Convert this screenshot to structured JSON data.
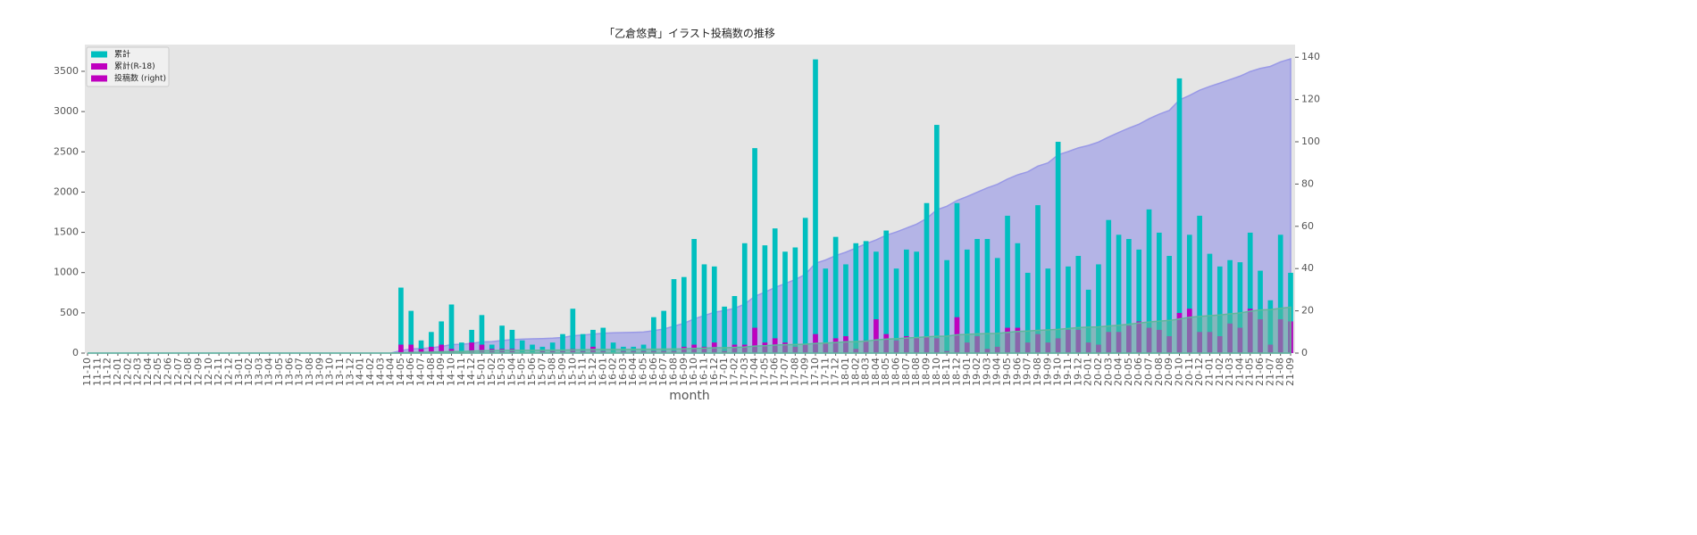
{
  "chart_data": {
    "type": "bar_area",
    "title": "「乙倉悠貴」イラスト投稿数の推移",
    "xlabel": "month",
    "categories": [
      "11-10",
      "11-11",
      "11-12",
      "12-01",
      "12-02",
      "12-03",
      "12-04",
      "12-05",
      "12-06",
      "12-07",
      "12-08",
      "12-09",
      "12-10",
      "12-11",
      "12-12",
      "13-01",
      "13-02",
      "13-03",
      "13-04",
      "13-05",
      "13-06",
      "13-07",
      "13-08",
      "13-09",
      "13-10",
      "13-11",
      "13-12",
      "14-01",
      "14-02",
      "14-03",
      "14-04",
      "14-05",
      "14-06",
      "14-07",
      "14-08",
      "14-09",
      "14-10",
      "14-11",
      "14-12",
      "15-01",
      "15-02",
      "15-03",
      "15-04",
      "15-05",
      "15-06",
      "15-07",
      "15-08",
      "15-09",
      "15-10",
      "15-11",
      "15-12",
      "16-01",
      "16-02",
      "16-03",
      "16-04",
      "16-05",
      "16-06",
      "16-07",
      "16-08",
      "16-09",
      "16-10",
      "16-11",
      "16-12",
      "17-01",
      "17-02",
      "17-03",
      "17-04",
      "17-05",
      "17-06",
      "17-07",
      "17-08",
      "17-09",
      "17-10",
      "17-11",
      "17-12",
      "18-01",
      "18-02",
      "18-03",
      "18-04",
      "18-05",
      "18-06",
      "18-07",
      "18-08",
      "18-09",
      "18-10",
      "18-11",
      "18-12",
      "19-01",
      "19-02",
      "19-03",
      "19-04",
      "19-05",
      "19-06",
      "19-07",
      "19-08",
      "19-09",
      "19-10",
      "19-11",
      "19-12",
      "20-01",
      "20-02",
      "20-03",
      "20-04",
      "20-05",
      "20-06",
      "20-07",
      "20-08",
      "20-09",
      "20-10",
      "20-11",
      "20-12",
      "21-01",
      "21-02",
      "21-03",
      "21-04",
      "21-05",
      "21-06",
      "21-07",
      "21-08",
      "21-09"
    ],
    "legend": [
      {
        "label": "累計",
        "color": "#00bfbf"
      },
      {
        "label": "累計(R-18)",
        "color": "#bf00bf"
      },
      {
        "label": "投稿数 (right)",
        "color": "#bf00bf"
      }
    ],
    "series": [
      {
        "kind": "area",
        "axis": "y",
        "color": "#9999e6",
        "values": [
          0,
          0,
          0,
          0,
          0,
          0,
          0,
          0,
          0,
          0,
          0,
          0,
          0,
          0,
          0,
          0,
          0,
          0,
          0,
          0,
          0,
          0,
          0,
          0,
          0,
          0,
          0,
          0,
          0,
          0,
          0,
          31,
          51,
          57,
          67,
          82,
          105,
          110,
          121,
          139,
          143,
          156,
          167,
          173,
          177,
          180,
          185,
          194,
          215,
          224,
          235,
          247,
          252,
          255,
          258,
          262,
          279,
          299,
          334,
          370,
          424,
          466,
          507,
          529,
          556,
          608,
          705,
          756,
          815,
          863,
          913,
          977,
          1116,
          1156,
          1211,
          1253,
          1305,
          1358,
          1406,
          1464,
          1504,
          1553,
          1601,
          1672,
          1780,
          1824,
          1895,
          1944,
          1998,
          2052,
          2097,
          2162,
          2214,
          2252,
          2322,
          2362,
          2462,
          2503,
          2549,
          2579,
          2621,
          2684,
          2740,
          2794,
          2843,
          2911,
          2968,
          3014,
          3144,
          3200,
          3265,
          3312,
          3353,
          3397,
          3440,
          3497,
          3536,
          3561,
          3617,
          3655
        ]
      },
      {
        "kind": "bar",
        "axis": "y2",
        "color": "#00bfbf",
        "values": [
          0,
          0,
          0,
          0,
          0,
          0,
          0,
          0,
          0,
          0,
          0,
          0,
          0,
          0,
          0,
          0,
          0,
          0,
          0,
          0,
          0,
          0,
          0,
          0,
          0,
          0,
          0,
          0,
          0,
          0,
          0,
          31,
          20,
          6,
          10,
          15,
          23,
          5,
          11,
          18,
          4,
          13,
          11,
          6,
          4,
          3,
          5,
          9,
          21,
          9,
          11,
          12,
          5,
          3,
          3,
          4,
          17,
          20,
          35,
          36,
          54,
          42,
          41,
          22,
          27,
          52,
          97,
          51,
          59,
          48,
          50,
          64,
          139,
          40,
          55,
          42,
          52,
          53,
          48,
          58,
          40,
          49,
          48,
          71,
          108,
          44,
          71,
          49,
          54,
          54,
          45,
          65,
          52,
          38,
          70,
          40,
          100,
          41,
          46,
          30,
          42,
          63,
          56,
          54,
          49,
          68,
          57,
          46,
          130,
          56,
          65,
          47,
          41,
          44,
          43,
          57,
          39,
          25,
          56,
          38
        ]
      },
      {
        "kind": "bar",
        "axis": "y2",
        "color": "#bf00bf",
        "values": [
          0,
          0,
          0,
          0,
          0,
          0,
          0,
          0,
          0,
          0,
          0,
          0,
          0,
          0,
          0,
          0,
          0,
          0,
          0,
          0,
          0,
          0,
          0,
          0,
          0,
          0,
          0,
          0,
          0,
          0,
          0,
          4,
          4,
          2,
          3,
          4,
          2,
          1,
          5,
          4,
          2,
          2,
          2,
          0,
          0,
          1,
          1,
          1,
          2,
          1,
          3,
          1,
          0,
          1,
          1,
          1,
          1,
          1,
          1,
          3,
          4,
          3,
          5,
          1,
          4,
          4,
          12,
          5,
          7,
          5,
          3,
          4,
          9,
          5,
          7,
          8,
          2,
          6,
          16,
          9,
          6,
          8,
          7,
          8,
          7,
          1,
          17,
          5,
          8,
          2,
          3,
          12,
          12,
          5,
          9,
          5,
          7,
          11,
          11,
          5,
          4,
          10,
          10,
          13,
          15,
          12,
          11,
          8,
          19,
          21,
          10,
          10,
          8,
          14,
          12,
          21,
          16,
          4,
          16,
          15
        ]
      },
      {
        "kind": "area",
        "axis": "y",
        "color": "#5fb89a",
        "values": [
          0,
          0,
          0,
          0,
          0,
          0,
          0,
          0,
          0,
          0,
          0,
          0,
          0,
          0,
          0,
          0,
          0,
          0,
          0,
          0,
          0,
          0,
          0,
          0,
          0,
          0,
          0,
          0,
          0,
          0,
          0,
          4,
          8,
          10,
          13,
          17,
          19,
          20,
          25,
          29,
          31,
          33,
          35,
          35,
          35,
          36,
          37,
          38,
          40,
          41,
          44,
          45,
          45,
          46,
          47,
          48,
          49,
          50,
          51,
          54,
          58,
          61,
          66,
          67,
          71,
          75,
          87,
          92,
          99,
          104,
          107,
          111,
          120,
          125,
          132,
          140,
          142,
          148,
          164,
          173,
          179,
          187,
          194,
          202,
          209,
          210,
          227,
          232,
          240,
          242,
          245,
          257,
          269,
          274,
          283,
          288,
          295,
          306,
          317,
          322,
          326,
          336,
          346,
          359,
          374,
          386,
          397,
          405,
          424,
          445,
          455,
          465,
          473,
          487,
          499,
          520,
          536,
          540,
          556,
          571
        ]
      }
    ],
    "ylim": [
      0,
      3832
    ],
    "yticks": [
      0,
      500,
      1000,
      1500,
      2000,
      2500,
      3000,
      3500
    ],
    "y2lim": [
      0,
      146
    ],
    "y2ticks": [
      0,
      20,
      40,
      60,
      80,
      100,
      120,
      140
    ],
    "legend_position": "upper left"
  }
}
